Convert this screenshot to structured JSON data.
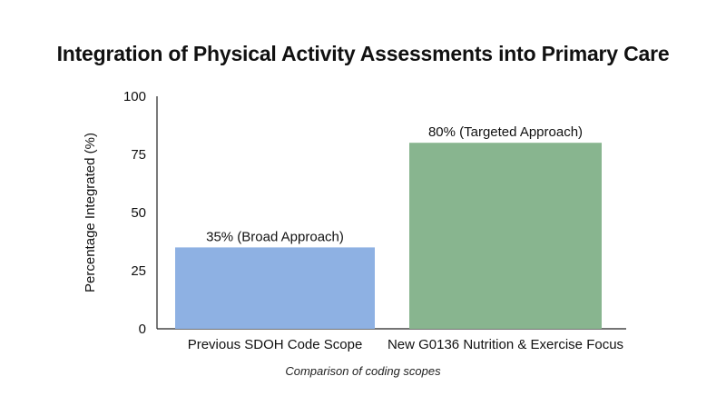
{
  "chart_data": {
    "type": "bar",
    "title": "Integration of Physical Activity Assessments into Primary Care",
    "xlabel": "",
    "ylabel": "Percentage Integrated (%)",
    "caption": "Comparison of coding scopes",
    "categories": [
      "Previous SDOH Code Scope",
      "New G0136 Nutrition & Exercise Focus"
    ],
    "values": [
      35,
      80
    ],
    "data_labels": [
      "35% (Broad Approach)",
      "80% (Targeted Approach)"
    ],
    "colors": [
      "#8eb1e3",
      "#88b58f"
    ],
    "ylim": [
      0,
      100
    ],
    "yticks": [
      "0",
      "25",
      "50",
      "75",
      "100"
    ],
    "grid": false,
    "legend": "none"
  }
}
